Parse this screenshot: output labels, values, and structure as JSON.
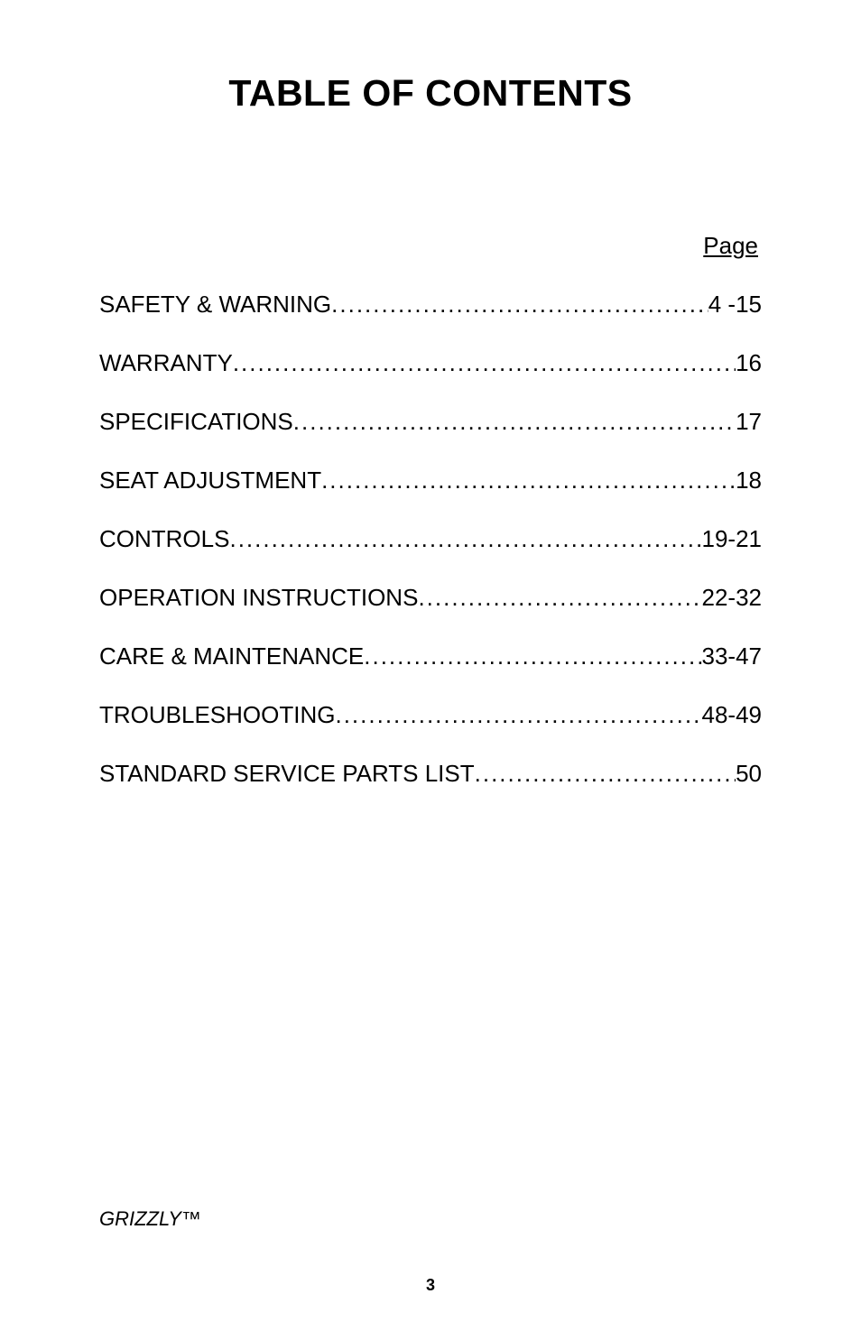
{
  "title": "TABLE OF CONTENTS",
  "page_header": "Page",
  "toc": [
    {
      "label": "SAFETY & WARNING",
      "page": "4 -15"
    },
    {
      "label": "WARRANTY",
      "page": "16"
    },
    {
      "label": "SPECIFICATIONS",
      "page": "17"
    },
    {
      "label": "SEAT ADJUSTMENT",
      "page": "18"
    },
    {
      "label": "CONTROLS",
      "page": "19-21"
    },
    {
      "label": "OPERATION INSTRUCTIONS",
      "page": "22-32"
    },
    {
      "label": "CARE & MAINTENANCE",
      "page": "33-47"
    },
    {
      "label": "TROUBLESHOOTING",
      "page": "48-49"
    },
    {
      "label": "STANDARD SERVICE PARTS LIST",
      "page": "50"
    }
  ],
  "footer_brand": "GRIZZLY™",
  "page_number": "3",
  "styles": {
    "title_fontsize": 41,
    "body_fontsize": 26,
    "page_header_fontsize": 26,
    "footer_fontsize": 22,
    "page_number_fontsize": 18,
    "background_color": "#ffffff",
    "text_color": "#000000",
    "row_gap": 34,
    "title_margin_bottom": 130
  }
}
